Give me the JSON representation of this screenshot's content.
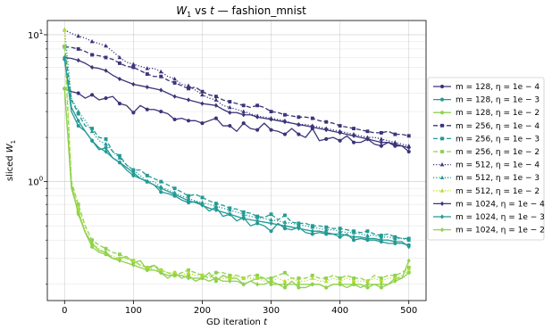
{
  "chart_data": {
    "type": "line",
    "title_parts": [
      "W",
      "1",
      " vs ",
      "t",
      " — fashion_mnist"
    ],
    "xlabel_parts": [
      "GD iteration ",
      "t"
    ],
    "ylabel_parts": [
      "sliced ",
      "W",
      "1"
    ],
    "x_ticks": [
      0,
      100,
      200,
      300,
      400,
      500
    ],
    "y_ticks": [
      {
        "value": 1,
        "label": "10",
        "exp": "0"
      },
      {
        "value": 10,
        "label": "10",
        "exp": "1"
      }
    ],
    "xlim": [
      -25,
      525
    ],
    "ylim": [
      0.155,
      12.5
    ],
    "y_scale": "log",
    "grid": true,
    "legend_position": "right",
    "x": [
      0,
      10,
      20,
      30,
      40,
      50,
      60,
      70,
      80,
      90,
      100,
      110,
      120,
      130,
      140,
      150,
      160,
      170,
      180,
      190,
      200,
      210,
      220,
      230,
      240,
      250,
      260,
      270,
      280,
      290,
      300,
      310,
      320,
      330,
      340,
      350,
      360,
      370,
      380,
      390,
      400,
      410,
      420,
      430,
      440,
      450,
      460,
      470,
      480,
      490,
      500
    ],
    "series": [
      {
        "label": "m = 128, η = 1e − 4",
        "color": "#3b3479",
        "marker": "circle",
        "dash": "solid",
        "values": [
          4.3,
          4.1,
          4.0,
          3.7,
          3.9,
          3.6,
          3.7,
          3.8,
          3.4,
          3.3,
          2.95,
          3.3,
          3.1,
          3.1,
          3.0,
          2.9,
          2.65,
          2.7,
          2.6,
          2.6,
          2.5,
          2.6,
          2.7,
          2.4,
          2.4,
          2.2,
          2.5,
          2.3,
          2.25,
          2.5,
          2.25,
          2.2,
          2.1,
          2.3,
          2.1,
          2.0,
          2.3,
          1.9,
          1.95,
          2.0,
          1.9,
          2.05,
          1.85,
          1.85,
          1.95,
          1.8,
          1.75,
          1.85,
          1.75,
          1.75,
          1.6
        ]
      },
      {
        "label": "m = 128, η = 1e − 3",
        "color": "#239a95",
        "marker": "circle",
        "dash": "solid",
        "values": [
          6.8,
          3.0,
          2.4,
          2.2,
          1.9,
          1.65,
          1.7,
          1.45,
          1.35,
          1.2,
          1.1,
          1.05,
          1.0,
          0.95,
          0.85,
          0.83,
          0.8,
          0.75,
          0.72,
          0.73,
          0.7,
          0.63,
          0.67,
          0.58,
          0.6,
          0.54,
          0.57,
          0.5,
          0.52,
          0.5,
          0.46,
          0.52,
          0.48,
          0.47,
          0.49,
          0.45,
          0.44,
          0.45,
          0.44,
          0.44,
          0.42,
          0.44,
          0.4,
          0.41,
          0.4,
          0.4,
          0.39,
          0.38,
          0.38,
          0.38,
          0.37
        ]
      },
      {
        "label": "m = 128, η = 1e − 2",
        "color": "#8fd14f",
        "marker": "circle",
        "dash": "solid",
        "values": [
          4.3,
          0.9,
          0.62,
          0.45,
          0.36,
          0.33,
          0.32,
          0.3,
          0.3,
          0.31,
          0.28,
          0.29,
          0.25,
          0.27,
          0.24,
          0.22,
          0.24,
          0.22,
          0.23,
          0.21,
          0.22,
          0.24,
          0.21,
          0.23,
          0.22,
          0.22,
          0.2,
          0.21,
          0.22,
          0.22,
          0.2,
          0.2,
          0.19,
          0.21,
          0.19,
          0.19,
          0.2,
          0.2,
          0.19,
          0.2,
          0.2,
          0.19,
          0.2,
          0.2,
          0.19,
          0.2,
          0.19,
          0.2,
          0.22,
          0.22,
          0.24
        ]
      },
      {
        "label": "m = 256, η = 1e − 4",
        "color": "#3b3479",
        "marker": "square",
        "dash": "dashed",
        "values": [
          8.3,
          8.2,
          8.0,
          7.7,
          7.3,
          7.2,
          7.0,
          6.8,
          6.4,
          6.1,
          6.0,
          5.7,
          5.4,
          5.2,
          5.2,
          4.9,
          4.7,
          4.5,
          4.3,
          4.4,
          4.1,
          3.9,
          3.8,
          3.6,
          3.5,
          3.4,
          3.3,
          3.2,
          3.3,
          3.2,
          3.0,
          2.95,
          2.85,
          2.8,
          2.75,
          2.75,
          2.7,
          2.6,
          2.55,
          2.5,
          2.4,
          2.35,
          2.3,
          2.25,
          2.2,
          2.15,
          2.15,
          2.2,
          2.1,
          2.1,
          2.05
        ]
      },
      {
        "label": "m = 256, η = 1e − 3",
        "color": "#239a95",
        "marker": "square",
        "dash": "dashed",
        "values": [
          8.3,
          3.6,
          2.9,
          2.4,
          2.3,
          2.0,
          1.95,
          1.6,
          1.5,
          1.3,
          1.2,
          1.2,
          1.1,
          1.05,
          1.0,
          0.95,
          0.9,
          0.85,
          0.8,
          0.82,
          0.78,
          0.74,
          0.71,
          0.69,
          0.66,
          0.65,
          0.62,
          0.61,
          0.58,
          0.57,
          0.6,
          0.55,
          0.59,
          0.53,
          0.52,
          0.52,
          0.5,
          0.5,
          0.49,
          0.48,
          0.48,
          0.47,
          0.46,
          0.45,
          0.46,
          0.44,
          0.43,
          0.44,
          0.42,
          0.41,
          0.41
        ]
      },
      {
        "label": "m = 256, η = 1e − 2",
        "color": "#8fd14f",
        "marker": "square",
        "dash": "dashed",
        "values": [
          8.3,
          1.0,
          0.7,
          0.5,
          0.4,
          0.37,
          0.35,
          0.33,
          0.32,
          0.3,
          0.29,
          0.27,
          0.26,
          0.27,
          0.25,
          0.24,
          0.23,
          0.24,
          0.25,
          0.24,
          0.23,
          0.22,
          0.24,
          0.24,
          0.23,
          0.23,
          0.22,
          0.23,
          0.23,
          0.22,
          0.22,
          0.23,
          0.24,
          0.22,
          0.22,
          0.22,
          0.23,
          0.22,
          0.22,
          0.23,
          0.22,
          0.23,
          0.22,
          0.22,
          0.21,
          0.23,
          0.22,
          0.23,
          0.23,
          0.24,
          0.26
        ]
      },
      {
        "label": "m = 512, η = 1e − 4",
        "color": "#3b3479",
        "marker": "triangle",
        "dash": "dotted",
        "values": [
          10.8,
          10.2,
          9.8,
          9.5,
          9.0,
          8.7,
          8.4,
          7.7,
          7.0,
          6.5,
          6.3,
          6.1,
          5.9,
          5.9,
          5.6,
          5.2,
          5.0,
          4.6,
          4.5,
          4.2,
          3.9,
          3.7,
          3.6,
          3.3,
          3.2,
          3.1,
          3.0,
          2.9,
          2.8,
          2.75,
          2.7,
          2.65,
          2.6,
          2.5,
          2.45,
          2.45,
          2.4,
          2.35,
          2.3,
          2.25,
          2.2,
          2.15,
          2.1,
          2.05,
          2.0,
          2.0,
          1.95,
          1.9,
          1.85,
          1.8,
          1.75
        ]
      },
      {
        "label": "m = 512, η = 1e − 3",
        "color": "#239a95",
        "marker": "triangle",
        "dash": "dotted",
        "values": [
          10.8,
          3.7,
          3.0,
          2.6,
          2.2,
          1.9,
          1.8,
          1.6,
          1.45,
          1.3,
          1.2,
          1.1,
          1.0,
          1.0,
          0.92,
          0.88,
          0.84,
          0.8,
          0.77,
          0.74,
          0.72,
          0.7,
          0.68,
          0.66,
          0.64,
          0.62,
          0.6,
          0.58,
          0.57,
          0.56,
          0.55,
          0.54,
          0.53,
          0.52,
          0.51,
          0.5,
          0.49,
          0.48,
          0.47,
          0.47,
          0.46,
          0.45,
          0.45,
          0.44,
          0.43,
          0.43,
          0.42,
          0.42,
          0.41,
          0.41,
          0.4
        ]
      },
      {
        "label": "m = 512, η = 1e − 2",
        "color": "#b5de2b",
        "marker": "triangle",
        "dash": "dotted",
        "values": [
          10.8,
          1.0,
          0.65,
          0.47,
          0.38,
          0.35,
          0.33,
          0.31,
          0.3,
          0.3,
          0.29,
          0.27,
          0.26,
          0.25,
          0.25,
          0.24,
          0.24,
          0.23,
          0.24,
          0.23,
          0.23,
          0.23,
          0.22,
          0.22,
          0.22,
          0.23,
          0.22,
          0.22,
          0.22,
          0.21,
          0.21,
          0.22,
          0.21,
          0.22,
          0.21,
          0.21,
          0.22,
          0.21,
          0.21,
          0.22,
          0.21,
          0.22,
          0.21,
          0.21,
          0.21,
          0.22,
          0.21,
          0.22,
          0.22,
          0.23,
          0.25
        ]
      },
      {
        "label": "m = 1024, η = 1e − 4",
        "color": "#3b3479",
        "marker": "diamond",
        "dash": "solid",
        "values": [
          7.0,
          6.9,
          6.7,
          6.4,
          6.0,
          5.9,
          5.7,
          5.3,
          5.0,
          4.8,
          4.6,
          4.5,
          4.4,
          4.3,
          4.2,
          4.0,
          3.8,
          3.7,
          3.6,
          3.5,
          3.4,
          3.35,
          3.3,
          3.1,
          2.95,
          2.95,
          2.85,
          2.85,
          2.75,
          2.7,
          2.65,
          2.6,
          2.55,
          2.5,
          2.45,
          2.4,
          2.35,
          2.3,
          2.25,
          2.2,
          2.15,
          2.1,
          2.05,
          2.0,
          1.95,
          1.9,
          1.85,
          1.85,
          1.8,
          1.75,
          1.7
        ]
      },
      {
        "label": "m = 1024, η = 1e − 3",
        "color": "#239a95",
        "marker": "diamond",
        "dash": "solid",
        "values": [
          7.0,
          3.2,
          2.6,
          2.2,
          1.9,
          1.7,
          1.6,
          1.45,
          1.35,
          1.25,
          1.15,
          1.05,
          1.0,
          0.95,
          0.9,
          0.86,
          0.82,
          0.78,
          0.74,
          0.72,
          0.69,
          0.66,
          0.64,
          0.62,
          0.6,
          0.58,
          0.56,
          0.55,
          0.54,
          0.53,
          0.52,
          0.51,
          0.5,
          0.49,
          0.48,
          0.47,
          0.46,
          0.46,
          0.45,
          0.44,
          0.44,
          0.43,
          0.42,
          0.42,
          0.41,
          0.41,
          0.4,
          0.4,
          0.39,
          0.39,
          0.36
        ]
      },
      {
        "label": "m = 1024, η = 1e − 2",
        "color": "#8fd14f",
        "marker": "diamond",
        "dash": "solid",
        "values": [
          4.3,
          0.95,
          0.6,
          0.45,
          0.38,
          0.34,
          0.33,
          0.3,
          0.29,
          0.28,
          0.27,
          0.26,
          0.25,
          0.25,
          0.24,
          0.23,
          0.23,
          0.23,
          0.22,
          0.22,
          0.22,
          0.21,
          0.22,
          0.21,
          0.21,
          0.21,
          0.2,
          0.21,
          0.2,
          0.2,
          0.21,
          0.2,
          0.2,
          0.2,
          0.2,
          0.2,
          0.2,
          0.2,
          0.19,
          0.2,
          0.2,
          0.2,
          0.2,
          0.19,
          0.2,
          0.2,
          0.2,
          0.2,
          0.21,
          0.22,
          0.29
        ]
      }
    ]
  }
}
